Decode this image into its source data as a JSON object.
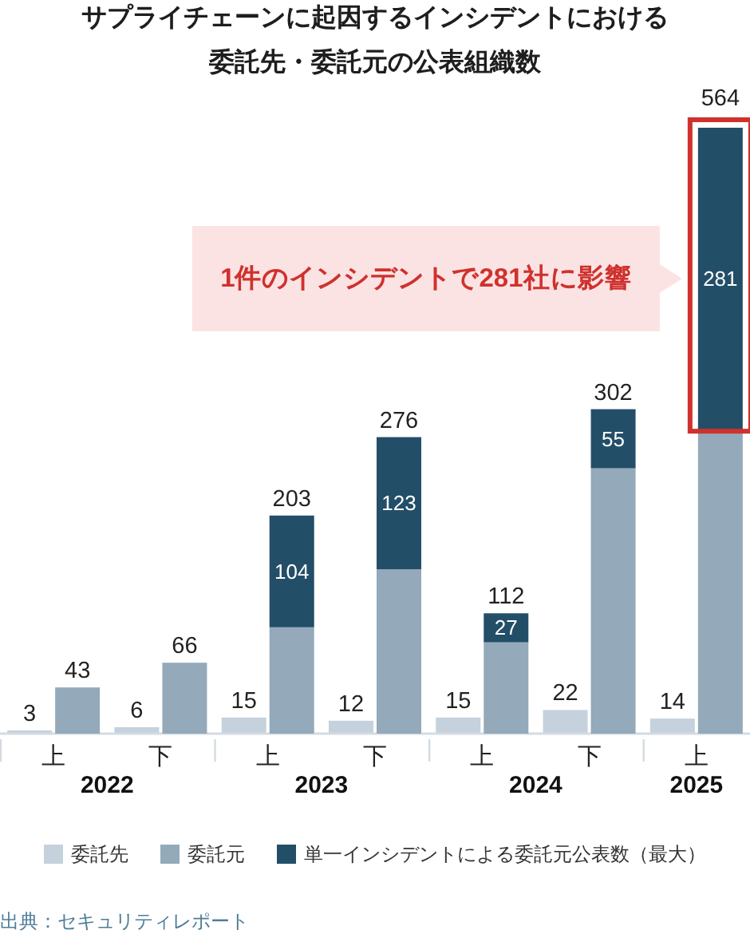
{
  "chart_data": [
    {
      "type": "bar",
      "title": "サプライチェーンに起因するインシデントにおける委託先・委託元の公表組織数",
      "categories": [
        "上",
        "下",
        "上",
        "下",
        "上",
        "下",
        "上"
      ],
      "series": [
        {
          "name": "委託先",
          "color": "#c5d1dc",
          "values": [
            3,
            6,
            15,
            12,
            15,
            22,
            14
          ]
        }
      ],
      "data_labels": true,
      "legend": "bottom",
      "annotations": [
        "2022",
        "2023",
        "2024",
        "2025",
        "出典：セキュリティレポート"
      ]
    },
    {
      "type": "bar",
      "stacked": true,
      "series": [
        {
          "name": "委託元",
          "color": "#94a9b9",
          "values": [
            43,
            66,
            99,
            153,
            85,
            247,
            283
          ]
        },
        {
          "name": "単一インシデントによる委託元公表数（最大）",
          "color": "#234e68",
          "values": [
            null,
            null,
            104,
            123,
            27,
            55,
            281
          ],
          "value_labels": [
            null,
            null,
            "104",
            "123",
            "27",
            "55",
            "281"
          ]
        }
      ],
      "totals": [
        "43",
        "66",
        "203",
        "276",
        "112",
        "302",
        "564"
      ],
      "tick_labels": false,
      "legend": "bottom",
      "annotations": [
        "1件のインシデントで281社に影響"
      ]
    }
  ]
}
